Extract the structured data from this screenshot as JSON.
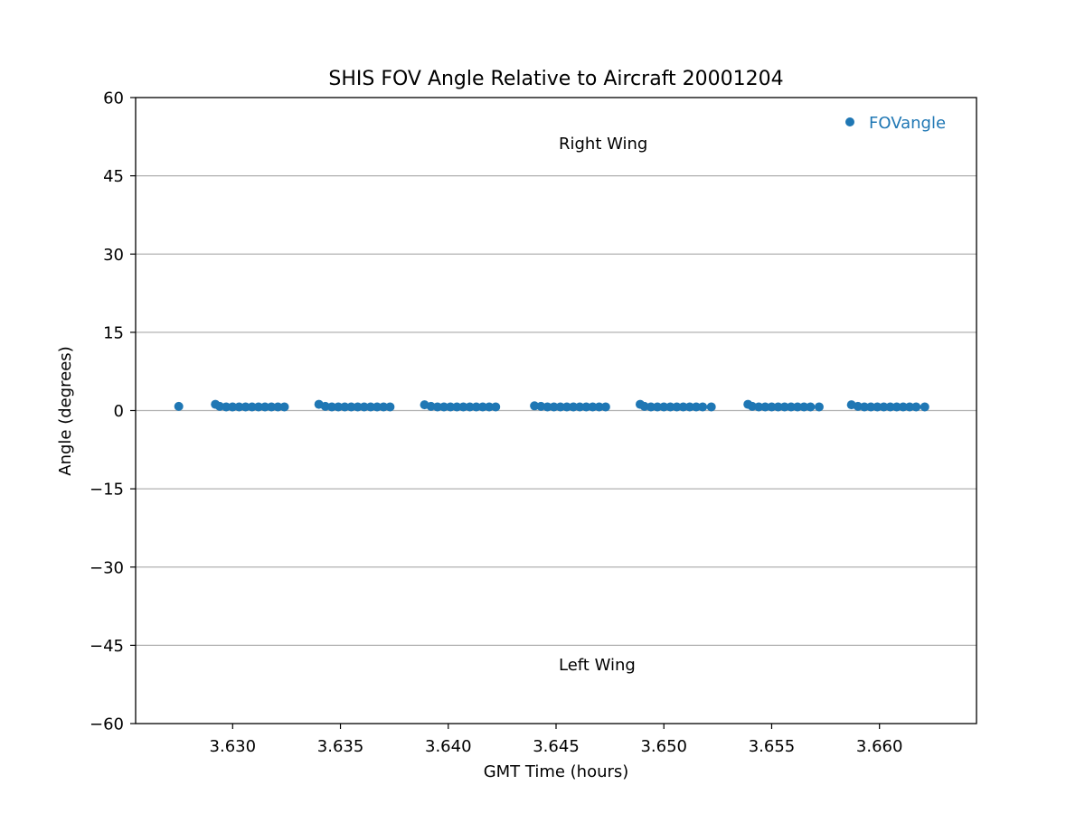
{
  "chart_data": {
    "type": "scatter",
    "title": "SHIS FOV Angle Relative to Aircraft 20001204",
    "xlabel": "GMT Time (hours)",
    "ylabel": "Angle (degrees)",
    "xlim": [
      3.6255,
      3.6645
    ],
    "ylim": [
      -60,
      60
    ],
    "x_ticks": [
      3.63,
      3.635,
      3.64,
      3.645,
      3.65,
      3.655,
      3.66
    ],
    "x_tick_labels": [
      "3.630",
      "3.635",
      "3.640",
      "3.645",
      "3.650",
      "3.655",
      "3.660"
    ],
    "y_ticks": [
      60,
      45,
      30,
      15,
      0,
      -15,
      -30,
      -45,
      -60
    ],
    "y_tick_labels": [
      "60",
      "45",
      "30",
      "15",
      "0",
      "−15",
      "−30",
      "−45",
      "−60"
    ],
    "grid": "horizontal",
    "legend_position": "top-right",
    "series_color": "#1f77b4",
    "annotations": [
      {
        "text": "Right Wing",
        "x": 3.6451,
        "y": 51
      },
      {
        "text": "Left Wing",
        "x": 3.6451,
        "y": -49
      }
    ],
    "series": [
      {
        "name": "FOVangle",
        "x": [
          3.6275,
          3.6292,
          3.6294,
          3.6297,
          3.63,
          3.6303,
          3.6306,
          3.6309,
          3.6312,
          3.6315,
          3.6318,
          3.6321,
          3.6324,
          3.634,
          3.6343,
          3.6346,
          3.6349,
          3.6352,
          3.6355,
          3.6358,
          3.6361,
          3.6364,
          3.6367,
          3.637,
          3.6373,
          3.6389,
          3.6392,
          3.6395,
          3.6398,
          3.6401,
          3.6404,
          3.6407,
          3.641,
          3.6413,
          3.6416,
          3.6419,
          3.6422,
          3.644,
          3.6443,
          3.6446,
          3.6449,
          3.6452,
          3.6455,
          3.6458,
          3.6461,
          3.6464,
          3.6467,
          3.647,
          3.6473,
          3.6489,
          3.6491,
          3.6494,
          3.6497,
          3.65,
          3.6503,
          3.6506,
          3.6509,
          3.6512,
          3.6515,
          3.6518,
          3.6522,
          3.6539,
          3.6541,
          3.6544,
          3.6547,
          3.655,
          3.6553,
          3.6556,
          3.6559,
          3.6562,
          3.6565,
          3.6568,
          3.6572,
          3.6587,
          3.659,
          3.6593,
          3.6596,
          3.6599,
          3.6602,
          3.6605,
          3.6608,
          3.6611,
          3.6614,
          3.6617,
          3.6621
        ],
        "y": [
          0.8,
          1.2,
          0.8,
          0.7,
          0.7,
          0.7,
          0.7,
          0.7,
          0.7,
          0.7,
          0.7,
          0.7,
          0.7,
          1.2,
          0.8,
          0.7,
          0.7,
          0.7,
          0.7,
          0.7,
          0.7,
          0.7,
          0.7,
          0.7,
          0.7,
          1.1,
          0.8,
          0.7,
          0.7,
          0.7,
          0.7,
          0.7,
          0.7,
          0.7,
          0.7,
          0.7,
          0.7,
          0.9,
          0.8,
          0.7,
          0.7,
          0.7,
          0.7,
          0.7,
          0.7,
          0.7,
          0.7,
          0.7,
          0.7,
          1.2,
          0.8,
          0.7,
          0.7,
          0.7,
          0.7,
          0.7,
          0.7,
          0.7,
          0.7,
          0.7,
          0.7,
          1.2,
          0.8,
          0.7,
          0.7,
          0.7,
          0.7,
          0.7,
          0.7,
          0.7,
          0.7,
          0.7,
          0.7,
          1.1,
          0.8,
          0.7,
          0.7,
          0.7,
          0.7,
          0.7,
          0.7,
          0.7,
          0.7,
          0.7,
          0.7
        ]
      }
    ]
  }
}
